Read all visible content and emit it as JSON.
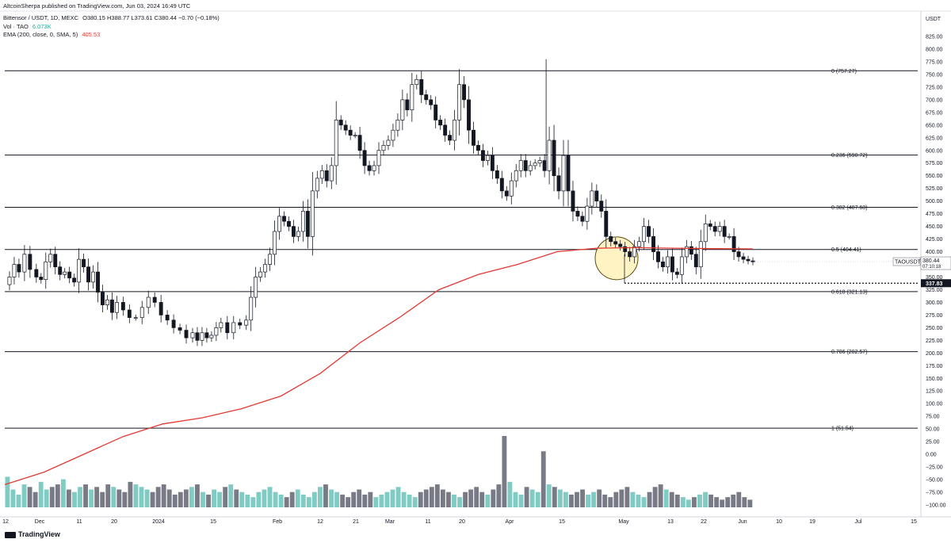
{
  "header": {
    "published": "AltcoinSherpa published on TradingView.com, Jun 03, 2024 16:49 UTC",
    "symbol": "Bittensor / USDT, 1D, MEXC",
    "ohlc": "O380.15 H388.77 L373.61 C380.44 −0.70 (−0.18%)",
    "vol_label": "Vol · TAO",
    "vol_value": "6.073K",
    "ema_label": "EMA (200, close, 0, SMA, 5)",
    "ema_value": "405.53"
  },
  "footer": {
    "brand": "TradingView"
  },
  "colors": {
    "up": "#ffffff",
    "down": "#131722",
    "ema": "#e53935",
    "vol_up": "#80cbc4",
    "vol_down": "#787b86",
    "highlight": "#fff3c4"
  },
  "chart_data": {
    "type": "candlestick",
    "symbol": "TAOUSDT",
    "axis_unit": "USDT",
    "last_price": "380.44",
    "countdown": "07:10:18",
    "marked_level": "337.83",
    "ylim": [
      -125,
      850
    ],
    "y_ticks": [
      "825.00",
      "800.00",
      "775.00",
      "750.00",
      "725.00",
      "700.00",
      "675.00",
      "650.00",
      "625.00",
      "600.00",
      "575.00",
      "550.00",
      "525.00",
      "500.00",
      "475.00",
      "450.00",
      "425.00",
      "400.00",
      "375.00",
      "350.00",
      "325.00",
      "300.00",
      "275.00",
      "250.00",
      "225.00",
      "200.00",
      "175.00",
      "150.00",
      "125.00",
      "100.00",
      "75.00",
      "50.00",
      "25.00",
      "0.00",
      "−25.00",
      "−50.00",
      "−75.00",
      "−100.00"
    ],
    "x_ticks": [
      "12",
      "Dec",
      "11",
      "20",
      "2024",
      "15",
      "Feb",
      "12",
      "21",
      "Mar",
      "11",
      "20",
      "Apr",
      "15",
      "May",
      "13",
      "22",
      "Jun",
      "10",
      "19",
      "Jul",
      "15"
    ],
    "fib_levels": [
      {
        "label": "0 (757.27)",
        "value": 757.27
      },
      {
        "label": "0.236 (590.72)",
        "value": 590.72
      },
      {
        "label": "0.382 (487.68)",
        "value": 487.68
      },
      {
        "label": "0.5 (404.41)",
        "value": 404.41
      },
      {
        "label": "0.618 (321.13)",
        "value": 321.13
      },
      {
        "label": "0.786 (202.57)",
        "value": 202.57
      },
      {
        "label": "1 (51.54)",
        "value": 51.54
      }
    ],
    "close_path": [
      [
        0,
        335
      ],
      [
        6,
        350
      ],
      [
        12,
        375
      ],
      [
        18,
        360
      ],
      [
        25,
        395
      ],
      [
        32,
        365
      ],
      [
        40,
        350
      ],
      [
        46,
        345
      ],
      [
        52,
        380
      ],
      [
        58,
        395
      ],
      [
        64,
        370
      ],
      [
        70,
        355
      ],
      [
        76,
        360
      ],
      [
        82,
        348
      ],
      [
        88,
        340
      ],
      [
        94,
        385
      ],
      [
        100,
        370
      ],
      [
        106,
        340
      ],
      [
        112,
        360
      ],
      [
        118,
        320
      ],
      [
        124,
        295
      ],
      [
        130,
        305
      ],
      [
        136,
        280
      ],
      [
        142,
        300
      ],
      [
        150,
        285
      ],
      [
        158,
        270
      ],
      [
        166,
        270
      ],
      [
        174,
        290
      ],
      [
        182,
        310
      ],
      [
        190,
        300
      ],
      [
        198,
        275
      ],
      [
        206,
        265
      ],
      [
        214,
        250
      ],
      [
        222,
        245
      ],
      [
        230,
        230
      ],
      [
        238,
        240
      ],
      [
        244,
        225
      ],
      [
        250,
        240
      ],
      [
        256,
        230
      ],
      [
        262,
        235
      ],
      [
        268,
        250
      ],
      [
        274,
        260
      ],
      [
        282,
        240
      ],
      [
        290,
        260
      ],
      [
        298,
        255
      ],
      [
        306,
        265
      ],
      [
        312,
        310
      ],
      [
        318,
        350
      ],
      [
        324,
        360
      ],
      [
        330,
        375
      ],
      [
        336,
        395
      ],
      [
        342,
        440
      ],
      [
        348,
        470
      ],
      [
        354,
        460
      ],
      [
        360,
        450
      ],
      [
        366,
        430
      ],
      [
        372,
        440
      ],
      [
        378,
        480
      ],
      [
        384,
        430
      ],
      [
        390,
        520
      ],
      [
        396,
        545
      ],
      [
        402,
        560
      ],
      [
        408,
        540
      ],
      [
        414,
        570
      ],
      [
        420,
        660
      ],
      [
        426,
        650
      ],
      [
        432,
        640
      ],
      [
        438,
        630
      ],
      [
        444,
        630
      ],
      [
        450,
        600
      ],
      [
        456,
        570
      ],
      [
        462,
        560
      ],
      [
        468,
        570
      ],
      [
        474,
        600
      ],
      [
        480,
        610
      ],
      [
        486,
        620
      ],
      [
        492,
        640
      ],
      [
        498,
        660
      ],
      [
        504,
        700
      ],
      [
        510,
        680
      ],
      [
        516,
        730
      ],
      [
        522,
        740
      ],
      [
        528,
        710
      ],
      [
        534,
        700
      ],
      [
        540,
        690
      ],
      [
        546,
        660
      ],
      [
        552,
        650
      ],
      [
        558,
        630
      ],
      [
        564,
        620
      ],
      [
        570,
        660
      ],
      [
        576,
        730
      ],
      [
        582,
        700
      ],
      [
        588,
        640
      ],
      [
        594,
        610
      ],
      [
        600,
        600
      ],
      [
        606,
        580
      ],
      [
        612,
        590
      ],
      [
        618,
        560
      ],
      [
        624,
        545
      ],
      [
        630,
        520
      ],
      [
        636,
        510
      ],
      [
        642,
        540
      ],
      [
        648,
        560
      ],
      [
        654,
        580
      ],
      [
        660,
        560
      ],
      [
        666,
        570
      ],
      [
        672,
        575
      ],
      [
        678,
        580
      ],
      [
        684,
        560
      ],
      [
        690,
        620
      ],
      [
        696,
        550
      ],
      [
        702,
        520
      ],
      [
        708,
        590
      ],
      [
        714,
        520
      ],
      [
        720,
        480
      ],
      [
        726,
        470
      ],
      [
        732,
        460
      ],
      [
        738,
        490
      ],
      [
        744,
        520
      ],
      [
        750,
        500
      ],
      [
        756,
        480
      ],
      [
        762,
        430
      ],
      [
        768,
        420
      ],
      [
        774,
        415
      ],
      [
        780,
        410
      ],
      [
        786,
        400
      ],
      [
        792,
        390
      ],
      [
        798,
        410
      ],
      [
        804,
        420
      ],
      [
        810,
        450
      ],
      [
        816,
        430
      ],
      [
        822,
        400
      ],
      [
        828,
        380
      ],
      [
        834,
        370
      ],
      [
        840,
        390
      ],
      [
        846,
        360
      ],
      [
        852,
        355
      ],
      [
        858,
        390
      ],
      [
        864,
        410
      ],
      [
        870,
        395
      ],
      [
        876,
        370
      ],
      [
        882,
        420
      ],
      [
        888,
        455
      ],
      [
        894,
        450
      ],
      [
        900,
        440
      ],
      [
        906,
        450
      ],
      [
        912,
        430
      ],
      [
        918,
        430
      ],
      [
        924,
        400
      ],
      [
        930,
        390
      ],
      [
        936,
        385
      ],
      [
        942,
        382
      ],
      [
        948,
        380
      ]
    ],
    "ema_path": [
      [
        0,
        -60
      ],
      [
        50,
        -35
      ],
      [
        100,
        0
      ],
      [
        150,
        35
      ],
      [
        200,
        60
      ],
      [
        250,
        72
      ],
      [
        300,
        90
      ],
      [
        350,
        115
      ],
      [
        400,
        160
      ],
      [
        450,
        220
      ],
      [
        500,
        270
      ],
      [
        550,
        325
      ],
      [
        600,
        355
      ],
      [
        650,
        375
      ],
      [
        700,
        400
      ],
      [
        750,
        407
      ],
      [
        800,
        408
      ],
      [
        850,
        407
      ],
      [
        900,
        406
      ],
      [
        948,
        405.5
      ]
    ],
    "volume": [
      12,
      7,
      5,
      9,
      8,
      6,
      10,
      7,
      8,
      9,
      11,
      7,
      6,
      8,
      9,
      7,
      8,
      6,
      9,
      8,
      7,
      6,
      10,
      9,
      8,
      7,
      6,
      8,
      9,
      7,
      5,
      6,
      7,
      8,
      9,
      6,
      5,
      7,
      6,
      8,
      9,
      7,
      6,
      5,
      4,
      6,
      7,
      8,
      6,
      5,
      4,
      6,
      7,
      5,
      4,
      6,
      8,
      9,
      7,
      6,
      5,
      4,
      6,
      7,
      5,
      6,
      4,
      5,
      6,
      7,
      8,
      6,
      5,
      4,
      6,
      7,
      8,
      9,
      7,
      6,
      5,
      4,
      6,
      7,
      8,
      6,
      5,
      7,
      9,
      28,
      10,
      6,
      5,
      8,
      7,
      6,
      22,
      9,
      8,
      7,
      6,
      5,
      6,
      7,
      5,
      6,
      7,
      5,
      4,
      6,
      7,
      8,
      6,
      5,
      4,
      6,
      8,
      9,
      7,
      6,
      5,
      4,
      3,
      4,
      5,
      6,
      5,
      4,
      3,
      4,
      5,
      6,
      4,
      3
    ]
  }
}
